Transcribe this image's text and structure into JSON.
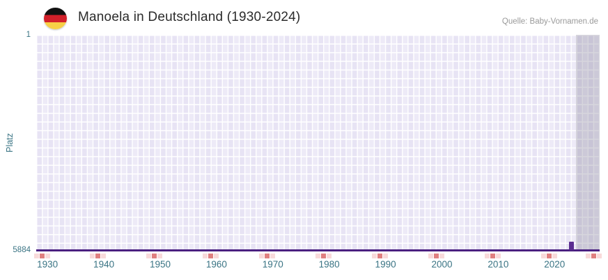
{
  "header": {
    "title": "Manoela in Deutschland (1930-2024)",
    "source": "Quelle: Baby-Vornamen.de",
    "flag": "german-flag-icon"
  },
  "chart_data": {
    "type": "line",
    "title": "Manoela in Deutschland (1930-2024)",
    "source": "Quelle: Baby-Vornamen.de",
    "xlabel": "",
    "ylabel": "Platz",
    "y_axis": {
      "top_label": "1",
      "bottom_label": "5884",
      "min": 1,
      "max": 5884,
      "inverted": true
    },
    "x_domain": [
      1928,
      2028
    ],
    "x_ticks": [
      "1930",
      "1940",
      "1950",
      "1960",
      "1970",
      "1980",
      "1990",
      "2000",
      "2010",
      "2020"
    ],
    "baseline_rank": 5884,
    "series": [
      {
        "name": "Manoela",
        "points": [
          {
            "year": 2023,
            "rank": 5650
          }
        ]
      }
    ],
    "tick_marker_years": [
      1929,
      1939,
      1949,
      1959,
      1969,
      1979,
      1989,
      1999,
      2009,
      2019,
      2027
    ],
    "highlight_band": {
      "from": 2023.8,
      "to": 2028
    },
    "grid": true,
    "legend": "none",
    "colors": {
      "line": "#4a2080",
      "point": "#5b2d91",
      "tick_marker": "#e08080",
      "band": "#e3e1e9",
      "plot_background": "#edeaf7",
      "axis_text": "#3a7484",
      "title_text": "#2b2b2b",
      "source_text": "#9a9a9a"
    }
  }
}
